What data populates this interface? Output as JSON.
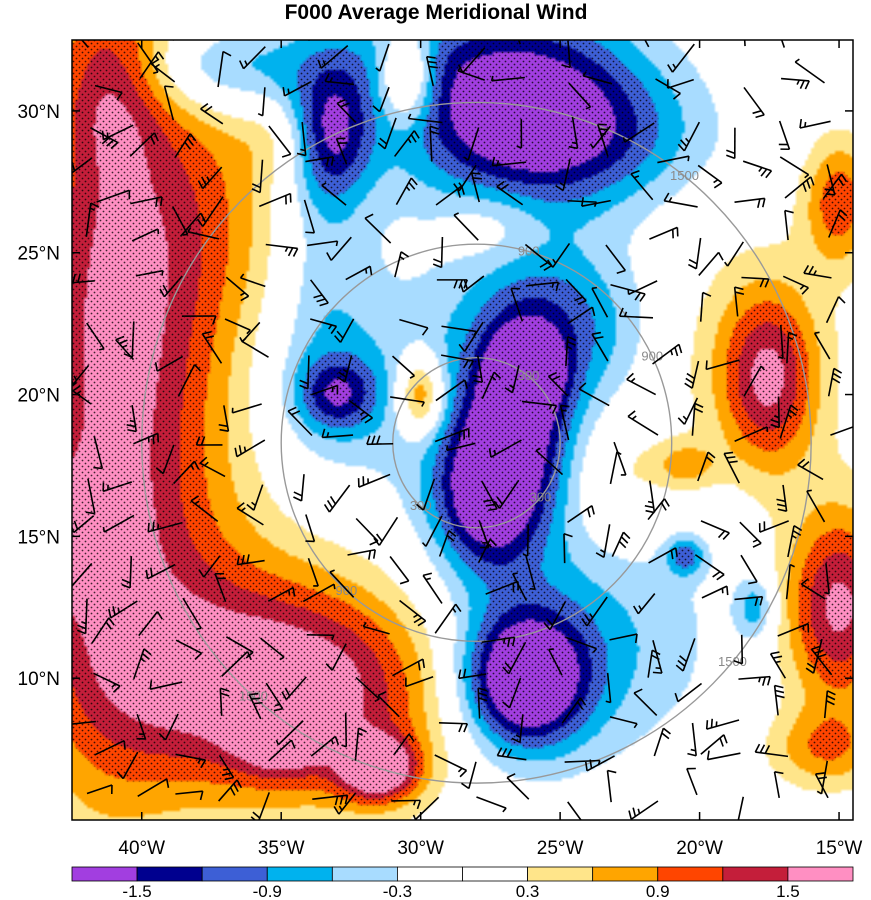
{
  "chart_data": {
    "type": "heatmap",
    "title": "F000 Average Meridional Wind",
    "xlabel": "",
    "ylabel": "",
    "x_ticks": [
      {
        "lon": -40,
        "label": "40°W"
      },
      {
        "lon": -35,
        "label": "35°W"
      },
      {
        "lon": -30,
        "label": "30°W"
      },
      {
        "lon": -25,
        "label": "25°W"
      },
      {
        "lon": -20,
        "label": "20°W"
      },
      {
        "lon": -15,
        "label": "15°W"
      }
    ],
    "y_ticks": [
      {
        "lat": 10,
        "label": "10°N"
      },
      {
        "lat": 15,
        "label": "15°N"
      },
      {
        "lat": 20,
        "label": "20°N"
      },
      {
        "lat": 25,
        "label": "25°N"
      },
      {
        "lat": 30,
        "label": "30°N"
      }
    ],
    "xlim": [
      -42.5,
      -14.5
    ],
    "ylim": [
      5,
      32.5
    ],
    "colorbar": {
      "levels": [
        -1.5,
        -1.2,
        -0.9,
        -0.6,
        -0.3,
        0,
        0.3,
        0.6,
        0.9,
        1.2,
        1.5
      ],
      "labels": [
        "-1.5",
        "-0.9",
        "-0.3",
        "0.3",
        "0.9",
        "1.5"
      ],
      "colors": [
        "#a23ee0",
        "#00008f",
        "#3d5fd6",
        "#00b2ee",
        "#a8dcff",
        "#ffffff",
        "#ffffff",
        "#ffe58a",
        "#ffa500",
        "#ff4500",
        "#c41e3a",
        "#ff8fc2"
      ]
    },
    "features": [
      {
        "lon": -26.5,
        "lat": 30.3,
        "value": -1.8,
        "sx": 3.2,
        "sy": 2.4
      },
      {
        "lon": -24.0,
        "lat": 29.0,
        "value": -0.6,
        "sx": 3.0,
        "sy": 1.6
      },
      {
        "lon": -33.2,
        "lat": 29.2,
        "value": -1.2,
        "sx": 1.0,
        "sy": 1.6
      },
      {
        "lon": -33.5,
        "lat": 25.5,
        "value": -0.5,
        "sx": 1.3,
        "sy": 4.5
      },
      {
        "lon": -37.5,
        "lat": 31.5,
        "value": -0.9,
        "sx": 2.2,
        "sy": 1.2
      },
      {
        "lon": -32.0,
        "lat": 31.8,
        "value": -0.35,
        "sx": 3.0,
        "sy": 1.2
      },
      {
        "lon": -30.5,
        "lat": 31.2,
        "value": 1.3,
        "sx": 0.7,
        "sy": 1.1
      },
      {
        "lon": -26.5,
        "lat": 19.5,
        "value": -1.3,
        "sx": 1.3,
        "sy": 2.2
      },
      {
        "lon": -27.6,
        "lat": 16.5,
        "value": -1.6,
        "sx": 1.3,
        "sy": 1.8
      },
      {
        "lon": -26.2,
        "lat": 20.8,
        "value": -1.9,
        "sx": 0.7,
        "sy": 0.8
      },
      {
        "lon": -25.0,
        "lat": 22.5,
        "value": -0.8,
        "sx": 2.2,
        "sy": 2.0
      },
      {
        "lon": -27.0,
        "lat": 18.0,
        "value": -0.5,
        "sx": 3.0,
        "sy": 5.0
      },
      {
        "lon": -33.0,
        "lat": 20.0,
        "value": -1.0,
        "sx": 1.0,
        "sy": 0.9
      },
      {
        "lon": -32.5,
        "lat": 20.5,
        "value": -0.4,
        "sx": 2.5,
        "sy": 2.5
      },
      {
        "lon": -30.0,
        "lat": 20.0,
        "value": 1.3,
        "sx": 0.6,
        "sy": 1.0
      },
      {
        "lon": -26.3,
        "lat": 9.9,
        "value": -1.9,
        "sx": 1.5,
        "sy": 1.6
      },
      {
        "lon": -26.0,
        "lat": 10.5,
        "value": -0.6,
        "sx": 2.5,
        "sy": 2.6
      },
      {
        "lon": -22.0,
        "lat": 11.5,
        "value": -0.35,
        "sx": 2.5,
        "sy": 3.0
      },
      {
        "lon": -20.5,
        "lat": 14.3,
        "value": -0.9,
        "sx": 0.5,
        "sy": 0.5
      },
      {
        "lon": -18.0,
        "lat": 12.5,
        "value": -0.8,
        "sx": 0.5,
        "sy": 0.8
      },
      {
        "lon": -23.0,
        "lat": 17.0,
        "value": 0.5,
        "sx": 1.3,
        "sy": 1.8
      },
      {
        "lon": -20.5,
        "lat": 17.5,
        "value": 0.7,
        "sx": 0.8,
        "sy": 0.6
      },
      {
        "lon": -17.5,
        "lat": 20.5,
        "value": 1.3,
        "sx": 1.2,
        "sy": 2.2
      },
      {
        "lon": -18.5,
        "lat": 21.5,
        "value": 0.4,
        "sx": 2.5,
        "sy": 3.0
      },
      {
        "lon": -15.0,
        "lat": 26.8,
        "value": 1.1,
        "sx": 0.9,
        "sy": 1.6
      },
      {
        "lon": -15.0,
        "lat": 12.5,
        "value": 1.6,
        "sx": 1.4,
        "sy": 2.5
      },
      {
        "lon": -15.5,
        "lat": 7.5,
        "value": 0.8,
        "sx": 1.5,
        "sy": 1.0
      },
      {
        "lon": -41.5,
        "lat": 21.0,
        "value": 1.4,
        "sx": 2.0,
        "sy": 10.0
      },
      {
        "lon": -38.5,
        "lat": 22.0,
        "value": 0.7,
        "sx": 2.0,
        "sy": 8.0
      },
      {
        "lon": -37.0,
        "lat": 26.5,
        "value": 0.4,
        "sx": 2.5,
        "sy": 3.5
      },
      {
        "lon": -42.0,
        "lat": 15.0,
        "value": 1.8,
        "sx": 0.9,
        "sy": 1.3
      },
      {
        "lon": -41.0,
        "lat": 31.0,
        "value": 0.6,
        "sx": 1.3,
        "sy": 2.0
      },
      {
        "lon": -34.5,
        "lat": 9.5,
        "value": 1.6,
        "sx": 4.0,
        "sy": 2.6
      },
      {
        "lon": -35.0,
        "lat": 8.5,
        "value": 1.8,
        "sx": 1.0,
        "sy": 1.0
      },
      {
        "lon": -31.5,
        "lat": 6.8,
        "value": 1.7,
        "sx": 1.0,
        "sy": 0.8
      },
      {
        "lon": -36.5,
        "lat": 10.5,
        "value": 0.5,
        "sx": 0.7,
        "sy": 0.6
      },
      {
        "lon": -38.0,
        "lat": 11.5,
        "value": 0.5,
        "sx": 5.0,
        "sy": 3.5
      },
      {
        "lon": -27.5,
        "lat": 26.0,
        "value": 0.4,
        "sx": 1.3,
        "sy": 1.0
      },
      {
        "lon": -35.0,
        "lat": 29.0,
        "value": 0.3,
        "sx": 1.0,
        "sy": 1.0
      }
    ],
    "rings": [
      {
        "lon": -28.0,
        "lat": 18.3,
        "r": 3.0,
        "label": "300"
      },
      {
        "lon": -28.0,
        "lat": 18.3,
        "r": 7.0,
        "label": "900"
      },
      {
        "lon": -28.0,
        "lat": 18.3,
        "r": 12.0,
        "label": "1500"
      }
    ]
  }
}
